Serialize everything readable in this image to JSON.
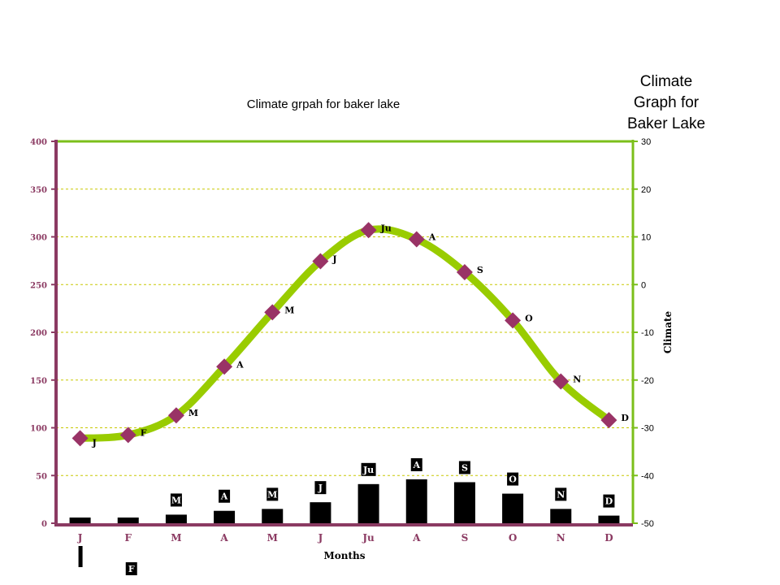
{
  "side_title": [
    "Climate",
    "Graph for",
    "Baker Lake"
  ],
  "colors": {
    "left_axis": "#8b3a62",
    "right_axis": "#7bbf1a",
    "line": "#99cc00",
    "marker": "#993366",
    "bar": "#000000",
    "grid": "#c8c800"
  },
  "chart_data": {
    "type": "bar+line",
    "title": "Climate grpah for baker lake",
    "xlabel": "Months",
    "ylabel_left": "",
    "ylabel_right": "Climate",
    "categories": [
      "J",
      "F",
      "M",
      "A",
      "M",
      "J",
      "Ju",
      "A",
      "S",
      "O",
      "N",
      "D"
    ],
    "ylim_left": [
      0,
      400
    ],
    "yticks_left": [
      0,
      50,
      100,
      150,
      200,
      250,
      300,
      350,
      400
    ],
    "ylim_right": [
      -50,
      30
    ],
    "yticks_right": [
      -50,
      -40,
      -30,
      -20,
      -10,
      0,
      10,
      20,
      30
    ],
    "grid": true,
    "series": [
      {
        "kind": "bar",
        "axis": "left",
        "values": [
          6,
          6,
          9,
          13,
          15,
          22,
          41,
          46,
          43,
          31,
          15,
          8
        ],
        "labels": [
          "J",
          "F",
          "M",
          "A",
          "M",
          "J",
          "Ju",
          "A",
          "S",
          "O",
          "N",
          "D"
        ]
      },
      {
        "kind": "line",
        "axis": "right",
        "values": [
          -32.2,
          -31.5,
          -27.4,
          -17.2,
          -5.8,
          4.9,
          11.4,
          9.5,
          2.6,
          -7.5,
          -20.3,
          -28.4
        ],
        "labels": [
          "J",
          "F",
          "M",
          "A",
          "M",
          "J",
          "Ju",
          "A",
          "S",
          "O",
          "N",
          "D"
        ]
      }
    ]
  }
}
